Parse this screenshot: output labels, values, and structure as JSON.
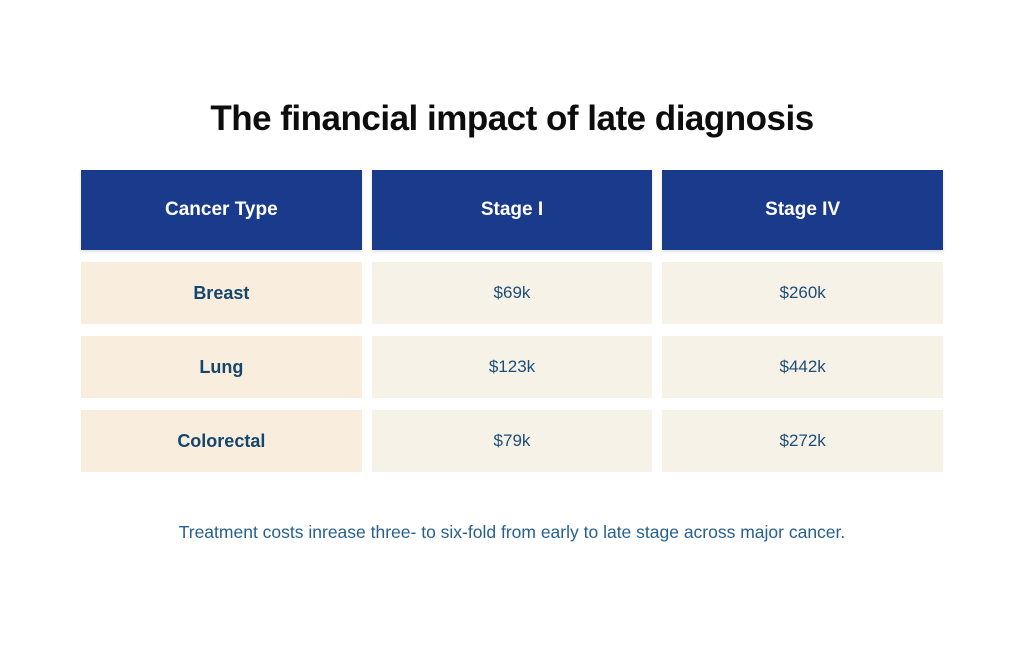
{
  "chart_data": {
    "type": "table",
    "title": "The financial impact of late diagnosis",
    "columns": [
      "Cancer Type",
      "Stage I",
      "Stage IV"
    ],
    "rows": [
      {
        "label": "Breast",
        "stage_i": "$69k",
        "stage_iv": "$260k"
      },
      {
        "label": "Lung",
        "stage_i": "$123k",
        "stage_iv": "$442k"
      },
      {
        "label": "Colorectal",
        "stage_i": "$79k",
        "stage_iv": "$272k"
      }
    ],
    "values_numeric_thousands": {
      "Breast": {
        "stage_i": 69,
        "stage_iv": 260
      },
      "Lung": {
        "stage_i": 123,
        "stage_iv": 442
      },
      "Colorectal": {
        "stage_i": 79,
        "stage_iv": 272
      }
    },
    "caption": "Treatment costs inrease three- to six-fold from early to late stage across major cancer."
  },
  "colors": {
    "title_text": "#0d0d0d",
    "header_bg": "#1a3a8c",
    "header_text": "#ffffff",
    "label_cell_bg": "#f9eedd",
    "value_cell_bg": "#f7f2e8",
    "label_text": "#15466d",
    "value_text": "#1d4e78",
    "footnote_text": "#27608e"
  }
}
